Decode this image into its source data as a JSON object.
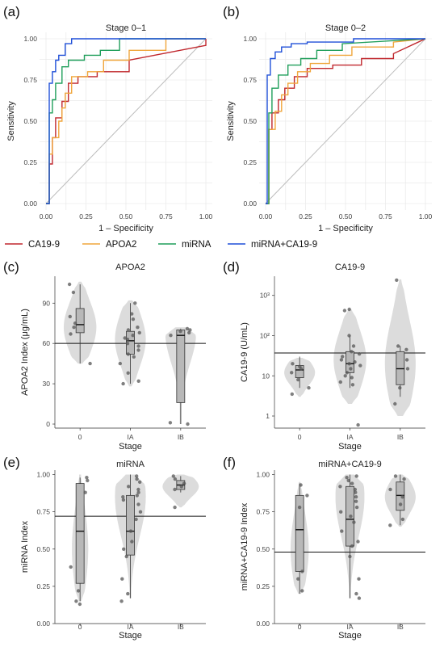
{
  "roc_panels": [
    {
      "label": "(a)",
      "title": "Stage 0–1",
      "xlabel": "1 – Specificity",
      "ylabel": "Sensitivity",
      "xticks": [
        "0.00",
        "0.25",
        "0.50",
        "0.75",
        "1.00"
      ],
      "yticks": [
        "0.00",
        "0.25",
        "0.50",
        "0.75",
        "1.00"
      ]
    },
    {
      "label": "(b)",
      "title": "Stage 0–2",
      "xlabel": "1 – Specificity",
      "ylabel": "Sensitivity",
      "xticks": [
        "0.00",
        "0.25",
        "0.50",
        "0.75",
        "1.00"
      ],
      "yticks": [
        "0.00",
        "0.25",
        "0.50",
        "0.75",
        "1.00"
      ]
    }
  ],
  "legend": [
    {
      "name": "CA19-9",
      "color": "#c0272d"
    },
    {
      "name": "APOA2",
      "color": "#f0a63c"
    },
    {
      "name": "miRNA",
      "color": "#1f9e5a"
    },
    {
      "name": "miRNA+CA19-9",
      "color": "#1f4fd8"
    }
  ],
  "violin_panels": [
    {
      "label": "(c)",
      "title": "APOA2",
      "ylabel": "APOA2 Index (μg/mL)",
      "xlabel": "Stage",
      "stages": [
        "0",
        "IA",
        "IB"
      ],
      "yticks": [
        "0",
        "30",
        "60",
        "90"
      ]
    },
    {
      "label": "(d)",
      "title": "CA19-9",
      "ylabel": "CA19-9 (U/mL)",
      "xlabel": "Stage",
      "stages": [
        "0",
        "IA",
        "IB"
      ],
      "yticks": [
        "1",
        "10",
        "10²",
        "10³"
      ]
    },
    {
      "label": "(e)",
      "title": "miRNA",
      "ylabel": "miRNA Index",
      "xlabel": "Stage",
      "stages": [
        "0",
        "IA",
        "IB"
      ],
      "yticks": [
        "0.00",
        "0.25",
        "0.50",
        "0.75",
        "1.00"
      ]
    },
    {
      "label": "(f)",
      "title": "miRNA+CA19-9",
      "ylabel": "miRNA+CA19-9 Index",
      "xlabel": "Stage",
      "stages": [
        "0",
        "IA",
        "IB"
      ],
      "yticks": [
        "0.00",
        "0.25",
        "0.50",
        "0.75",
        "1.00"
      ]
    }
  ],
  "chart_data": [
    {
      "type": "line",
      "panel": "(a)",
      "title": "Stage 0–1",
      "xlabel": "1 – Specificity",
      "ylabel": "Sensitivity",
      "xlim": [
        0,
        1
      ],
      "ylim": [
        0,
        1
      ],
      "grid": true,
      "diagonal_reference": true,
      "series": [
        {
          "name": "CA19-9",
          "color": "#c0272d",
          "x": [
            0,
            0.02,
            0.02,
            0.04,
            0.04,
            0.06,
            0.06,
            0.1,
            0.1,
            0.14,
            0.14,
            0.2,
            0.2,
            0.32,
            0.32,
            0.52,
            0.52,
            1.0,
            1.0
          ],
          "y": [
            0,
            0,
            0.24,
            0.24,
            0.4,
            0.4,
            0.52,
            0.52,
            0.62,
            0.62,
            0.73,
            0.73,
            0.77,
            0.77,
            0.8,
            0.8,
            0.87,
            0.96,
            1.0
          ]
        },
        {
          "name": "APOA2",
          "color": "#f0a63c",
          "x": [
            0,
            0.02,
            0.02,
            0.04,
            0.04,
            0.08,
            0.08,
            0.1,
            0.1,
            0.12,
            0.12,
            0.16,
            0.16,
            0.26,
            0.26,
            0.36,
            0.36,
            0.52,
            0.52,
            0.75,
            0.75,
            1.0
          ],
          "y": [
            0,
            0,
            0.3,
            0.3,
            0.4,
            0.4,
            0.5,
            0.5,
            0.58,
            0.58,
            0.67,
            0.67,
            0.77,
            0.77,
            0.8,
            0.8,
            0.87,
            0.87,
            0.93,
            0.93,
            1.0,
            1.0
          ]
        },
        {
          "name": "miRNA",
          "color": "#1f9e5a",
          "x": [
            0,
            0.02,
            0.02,
            0.04,
            0.04,
            0.06,
            0.06,
            0.1,
            0.1,
            0.14,
            0.14,
            0.24,
            0.24,
            0.34,
            0.34,
            0.46,
            0.46,
            1.0
          ],
          "y": [
            0,
            0,
            0.55,
            0.55,
            0.63,
            0.63,
            0.73,
            0.73,
            0.83,
            0.83,
            0.87,
            0.87,
            0.9,
            0.9,
            0.93,
            0.93,
            1.0,
            1.0
          ]
        },
        {
          "name": "miRNA+CA19-9",
          "color": "#1f4fd8",
          "x": [
            0,
            0.02,
            0.02,
            0.04,
            0.04,
            0.06,
            0.06,
            0.08,
            0.08,
            0.12,
            0.12,
            0.16,
            0.16,
            1.0
          ],
          "y": [
            0,
            0,
            0.73,
            0.73,
            0.8,
            0.8,
            0.87,
            0.87,
            0.9,
            0.9,
            0.97,
            0.97,
            1.0,
            1.0
          ]
        }
      ]
    },
    {
      "type": "line",
      "panel": "(b)",
      "title": "Stage 0–2",
      "xlabel": "1 – Specificity",
      "ylabel": "Sensitivity",
      "xlim": [
        0,
        1
      ],
      "ylim": [
        0,
        1
      ],
      "grid": true,
      "diagonal_reference": true,
      "series": [
        {
          "name": "CA19-9",
          "color": "#c0272d",
          "x": [
            0,
            0.02,
            0.02,
            0.04,
            0.04,
            0.08,
            0.08,
            0.12,
            0.12,
            0.18,
            0.18,
            0.26,
            0.26,
            0.42,
            0.42,
            0.6,
            0.6,
            0.8,
            0.8,
            1.0
          ],
          "y": [
            0,
            0,
            0.45,
            0.45,
            0.55,
            0.55,
            0.63,
            0.63,
            0.7,
            0.7,
            0.77,
            0.77,
            0.82,
            0.82,
            0.84,
            0.84,
            0.88,
            0.88,
            0.91,
            1.0
          ]
        },
        {
          "name": "APOA2",
          "color": "#f0a63c",
          "x": [
            0,
            0.02,
            0.02,
            0.06,
            0.06,
            0.1,
            0.1,
            0.14,
            0.14,
            0.2,
            0.2,
            0.28,
            0.28,
            0.4,
            0.4,
            0.54,
            0.54,
            0.8,
            0.8,
            1.0
          ],
          "y": [
            0,
            0,
            0.45,
            0.45,
            0.56,
            0.56,
            0.66,
            0.66,
            0.73,
            0.73,
            0.8,
            0.8,
            0.85,
            0.85,
            0.9,
            0.9,
            0.95,
            0.95,
            0.98,
            1.0
          ]
        },
        {
          "name": "miRNA",
          "color": "#1f9e5a",
          "x": [
            0,
            0.02,
            0.02,
            0.04,
            0.04,
            0.08,
            0.08,
            0.14,
            0.14,
            0.22,
            0.22,
            0.32,
            0.32,
            0.48,
            0.48,
            1.0
          ],
          "y": [
            0,
            0,
            0.55,
            0.55,
            0.7,
            0.7,
            0.78,
            0.78,
            0.84,
            0.84,
            0.88,
            0.88,
            0.93,
            0.93,
            0.97,
            1.0
          ]
        },
        {
          "name": "miRNA+CA19-9",
          "color": "#1f4fd8",
          "x": [
            0,
            0.01,
            0.01,
            0.03,
            0.03,
            0.06,
            0.06,
            0.1,
            0.1,
            0.16,
            0.16,
            0.26,
            0.26,
            0.55,
            0.55,
            1.0
          ],
          "y": [
            0,
            0,
            0.78,
            0.78,
            0.88,
            0.88,
            0.92,
            0.92,
            0.95,
            0.95,
            0.97,
            0.97,
            0.98,
            0.98,
            1.0,
            1.0
          ]
        }
      ]
    },
    {
      "type": "violin",
      "panel": "(c)",
      "title": "APOA2",
      "xlabel": "Stage",
      "ylabel": "APOA2 Index (μg/mL)",
      "ylim": [
        -3,
        110
      ],
      "scale": "linear",
      "cutoff": 60,
      "groups": [
        {
          "stage": "0",
          "violin": {
            "min": 45,
            "max": 106,
            "mode": 72,
            "width": 0.9
          },
          "box": {
            "min": 45,
            "q1": 68,
            "median": 74,
            "q3": 86,
            "max": 104
          },
          "points": [
            104,
            98,
            80,
            75,
            72,
            67,
            45
          ]
        },
        {
          "stage": "IA",
          "violin": {
            "min": 28,
            "max": 92,
            "mode": 63,
            "width": 0.85
          },
          "box": {
            "min": 30,
            "q1": 52,
            "median": 62,
            "q3": 69,
            "max": 90
          },
          "points": [
            90,
            82,
            78,
            72,
            70,
            68,
            66,
            64,
            63,
            60,
            58,
            55,
            52,
            50,
            45,
            38,
            32,
            30
          ]
        },
        {
          "stage": "IB",
          "violin": {
            "min": 0,
            "max": 72,
            "mode": 68,
            "width": 0.85
          },
          "box": {
            "min": 0,
            "q1": 16,
            "median": 66,
            "q3": 70,
            "max": 71
          },
          "points": [
            71,
            70,
            69,
            68,
            66,
            1,
            0
          ]
        }
      ]
    },
    {
      "type": "violin",
      "panel": "(d)",
      "title": "CA19-9",
      "xlabel": "Stage",
      "ylabel": "CA19-9 (U/mL)",
      "ylim": [
        0.5,
        3000
      ],
      "scale": "log10",
      "cutoff": 37,
      "groups": [
        {
          "stage": "0",
          "violin": {
            "min": 3,
            "max": 28,
            "mode": 12,
            "width": 0.85
          },
          "box": {
            "min": 5,
            "q1": 9,
            "median": 14,
            "q3": 18,
            "max": 30
          },
          "points": [
            20,
            17,
            15,
            12,
            8,
            5,
            3.5
          ]
        },
        {
          "stage": "IA",
          "violin": {
            "min": 2,
            "max": 450,
            "mode": 25,
            "width": 0.9
          },
          "box": {
            "min": 5,
            "q1": 12,
            "median": 20,
            "q3": 40,
            "max": 100
          },
          "points": [
            450,
            420,
            100,
            55,
            40,
            35,
            30,
            25,
            22,
            20,
            18,
            15,
            12,
            10,
            9,
            7,
            6,
            0.6
          ]
        },
        {
          "stage": "IB",
          "violin": {
            "min": 1,
            "max": 2500,
            "mode": 20,
            "width": 0.85
          },
          "box": {
            "min": 3,
            "q1": 6,
            "median": 15,
            "q3": 40,
            "max": 55
          },
          "points": [
            2400,
            55,
            45,
            25,
            15,
            5,
            2
          ]
        }
      ]
    },
    {
      "type": "violin",
      "panel": "(e)",
      "title": "miRNA",
      "xlabel": "Stage",
      "ylabel": "miRNA Index",
      "ylim": [
        0,
        1.03
      ],
      "scale": "linear",
      "cutoff": 0.72,
      "groups": [
        {
          "stage": "0",
          "violin": {
            "min": 0.15,
            "max": 1.0,
            "mode": 0.5,
            "width": 0.45
          },
          "box": {
            "min": 0.15,
            "q1": 0.27,
            "median": 0.62,
            "q3": 0.94,
            "max": 0.98
          },
          "points": [
            0.98,
            0.96,
            0.88,
            0.38,
            0.22,
            0.15,
            0.13
          ]
        },
        {
          "stage": "IA",
          "violin": {
            "min": 0.17,
            "max": 1.0,
            "mode": 0.85,
            "width": 0.85
          },
          "box": {
            "min": 0.17,
            "q1": 0.46,
            "median": 0.62,
            "q3": 0.86,
            "max": 1.0
          },
          "points": [
            0.99,
            0.97,
            0.95,
            0.92,
            0.9,
            0.88,
            0.86,
            0.85,
            0.83,
            0.8,
            0.75,
            0.7,
            0.62,
            0.55,
            0.5,
            0.45,
            0.3,
            0.2,
            0.15
          ]
        },
        {
          "stage": "IB",
          "violin": {
            "min": 0.78,
            "max": 1.0,
            "mode": 0.92,
            "width": 1.0
          },
          "box": {
            "min": 0.88,
            "q1": 0.9,
            "median": 0.93,
            "q3": 0.96,
            "max": 0.99
          },
          "points": [
            0.99,
            0.97,
            0.94,
            0.92,
            0.9,
            0.78
          ]
        }
      ]
    },
    {
      "type": "violin",
      "panel": "(f)",
      "title": "miRNA+CA19-9",
      "xlabel": "Stage",
      "ylabel": "miRNA+CA19-9 Index",
      "ylim": [
        0,
        1.03
      ],
      "scale": "linear",
      "cutoff": 0.48,
      "groups": [
        {
          "stage": "0",
          "violin": {
            "min": 0.2,
            "max": 0.95,
            "mode": 0.5,
            "width": 0.5
          },
          "box": {
            "min": 0.2,
            "q1": 0.35,
            "median": 0.63,
            "q3": 0.86,
            "max": 0.94
          },
          "points": [
            0.93,
            0.86,
            0.78,
            0.35,
            0.3,
            0.22
          ]
        },
        {
          "stage": "IA",
          "violin": {
            "min": 0.17,
            "max": 1.0,
            "mode": 0.85,
            "width": 0.8
          },
          "box": {
            "min": 0.17,
            "q1": 0.52,
            "median": 0.7,
            "q3": 0.92,
            "max": 1.0
          },
          "points": [
            0.99,
            0.98,
            0.96,
            0.94,
            0.92,
            0.9,
            0.88,
            0.85,
            0.82,
            0.78,
            0.75,
            0.72,
            0.68,
            0.62,
            0.55,
            0.52,
            0.45,
            0.3,
            0.2,
            0.17
          ]
        },
        {
          "stage": "IB",
          "violin": {
            "min": 0.65,
            "max": 1.0,
            "mode": 0.85,
            "width": 0.85
          },
          "box": {
            "min": 0.66,
            "q1": 0.76,
            "median": 0.86,
            "q3": 0.95,
            "max": 1.0
          },
          "points": [
            0.99,
            0.97,
            0.9,
            0.85,
            0.8,
            0.7,
            0.66
          ]
        }
      ]
    }
  ]
}
